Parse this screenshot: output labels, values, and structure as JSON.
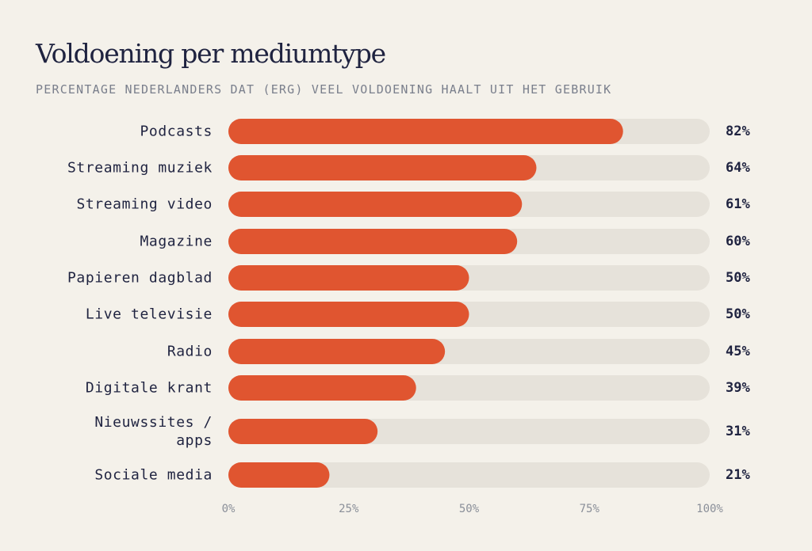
{
  "title": "Voldoening per mediumtype",
  "subtitle": "PERCENTAGE NEDERLANDERS DAT (ERG) VEEL VOLDOENING HAALT UIT HET GEBRUIK",
  "colors": {
    "background": "#f4f1ea",
    "bar": "#e05530",
    "track": "#e6e2da",
    "title": "#1f2340",
    "subtitle": "#7a7f8c",
    "label": "#1f2340",
    "value": "#1f2340",
    "tick": "#8a8f99"
  },
  "chart_data": {
    "type": "bar",
    "orientation": "horizontal",
    "categories": [
      [
        "Podcasts"
      ],
      [
        "Streaming muziek"
      ],
      [
        "Streaming video"
      ],
      [
        "Magazine"
      ],
      [
        "Papieren dagblad"
      ],
      [
        "Live televisie"
      ],
      [
        "Radio"
      ],
      [
        "Digitale krant"
      ],
      [
        "Nieuwssites /",
        "apps"
      ],
      [
        "Sociale media"
      ]
    ],
    "values": [
      82,
      64,
      61,
      60,
      50,
      50,
      45,
      39,
      31,
      21
    ],
    "value_labels": [
      "82%",
      "64%",
      "61%",
      "60%",
      "50%",
      "50%",
      "45%",
      "39%",
      "31%",
      "21%"
    ],
    "xlim": [
      0,
      100
    ],
    "xticks": [
      0,
      25,
      50,
      75,
      100
    ],
    "xtick_labels": [
      "0%",
      "25%",
      "50%",
      "75%",
      "100%"
    ],
    "grid": false,
    "legend": "none"
  }
}
